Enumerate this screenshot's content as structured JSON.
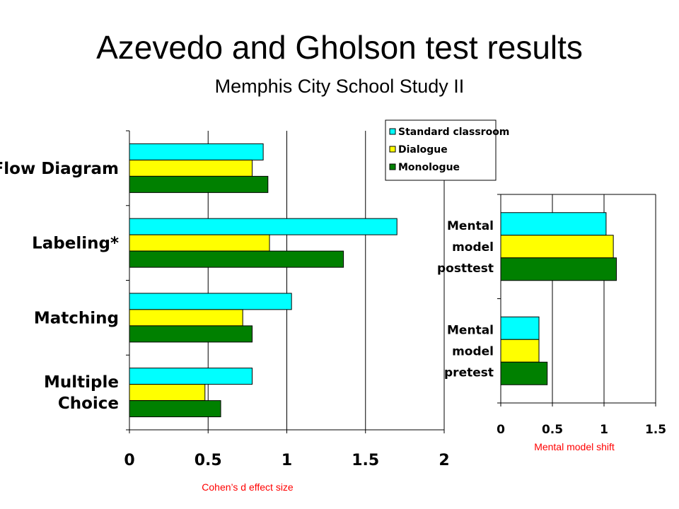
{
  "title": "Azevedo and Gholson test results",
  "subtitle": "Memphis City School Study II",
  "colors": {
    "series": [
      "#00ffff",
      "#ffff00",
      "#008000"
    ],
    "xlabel": "#ff0000"
  },
  "chart_data": [
    {
      "type": "bar",
      "orientation": "horizontal",
      "categories": [
        "Flow Diagram",
        "Labeling*",
        "Matching",
        "Multiple Choice"
      ],
      "category_lines": [
        [
          "Flow Diagram"
        ],
        [
          "Labeling*"
        ],
        [
          "Matching"
        ],
        [
          "Multiple",
          "Choice"
        ]
      ],
      "series": [
        {
          "name": "Standard classroom",
          "values": [
            0.85,
            1.7,
            1.03,
            0.78
          ]
        },
        {
          "name": "Dialogue",
          "values": [
            0.78,
            0.89,
            0.72,
            0.48
          ]
        },
        {
          "name": "Monologue",
          "values": [
            0.88,
            1.36,
            0.78,
            0.58
          ]
        }
      ],
      "xlabel": "Cohen’s d effect size",
      "xlim": [
        0,
        2
      ],
      "xticks": [
        "0",
        "0.5",
        "1",
        "1.5",
        "2"
      ],
      "grid": true,
      "legend": "top-right"
    },
    {
      "type": "bar",
      "orientation": "horizontal",
      "categories": [
        "Mental model posttest",
        "Mental model pretest"
      ],
      "category_lines": [
        [
          "Mental",
          "model",
          "posttest"
        ],
        [
          "Mental",
          "model",
          "pretest"
        ]
      ],
      "series": [
        {
          "name": "Standard classroom",
          "values": [
            1.02,
            0.37
          ]
        },
        {
          "name": "Dialogue",
          "values": [
            1.09,
            0.37
          ]
        },
        {
          "name": "Monologue",
          "values": [
            1.12,
            0.45
          ]
        }
      ],
      "xlabel": "Mental model shift",
      "xlim": [
        0,
        1.5
      ],
      "xticks": [
        "0",
        "0.5",
        "1",
        "1.5"
      ],
      "grid": true
    }
  ]
}
